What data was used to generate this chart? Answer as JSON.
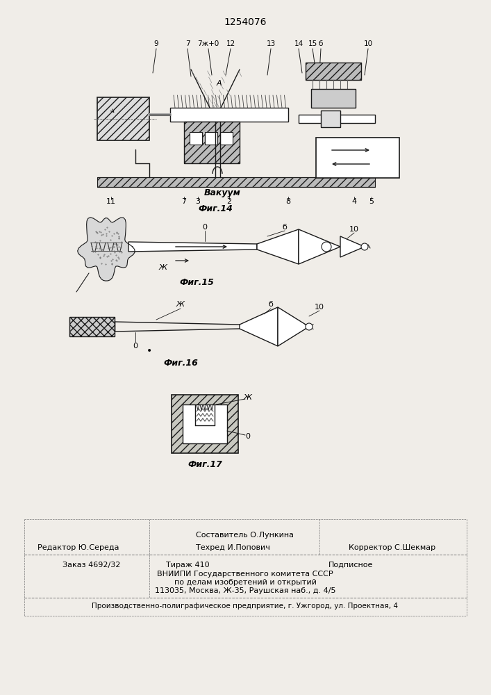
{
  "patent_number": "1254076",
  "background_color": "#f0ede8",
  "fig14_label": "Фиг.14",
  "fig15_label": "Фиг.15",
  "fig16_label": "Фиг.16",
  "fig17_label": "Фиг.17",
  "vakuum_label": "Вакуум",
  "line_color": "#1a1a1a",
  "fig14_top_labels": [
    [
      "9",
      225,
      63
    ],
    [
      "7",
      270,
      63
    ],
    [
      "7ж+0",
      300,
      63
    ],
    [
      "12",
      332,
      63
    ],
    [
      "13",
      390,
      63
    ],
    [
      "14",
      430,
      63
    ],
    [
      "15",
      450,
      63
    ],
    [
      "б",
      462,
      63
    ],
    [
      "10",
      530,
      63
    ]
  ],
  "fig14_bottom_labels": [
    [
      "11",
      160,
      285
    ],
    [
      "7",
      265,
      285
    ],
    [
      "3",
      285,
      285
    ],
    [
      "2",
      330,
      285
    ],
    [
      "8",
      415,
      285
    ],
    [
      "4",
      510,
      285
    ],
    [
      "5",
      535,
      285
    ]
  ]
}
